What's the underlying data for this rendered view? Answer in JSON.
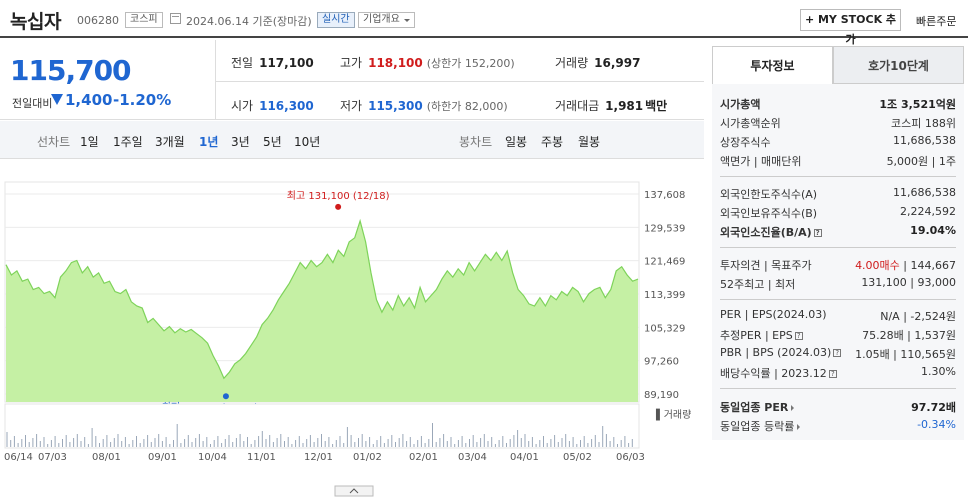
{
  "header": {
    "name": "녹십자",
    "code": "006280",
    "market": "코스피",
    "date": "2024.06.14 기준(장마감)",
    "realtime": "실시간",
    "company_info": "기업개요",
    "mystock": "+ MY STOCK 추가",
    "fast_order": "빠른주문"
  },
  "summary": {
    "price": "115,700",
    "prev_label": "전일대비",
    "change": "1,400",
    "change_pct": "-1.20%",
    "prev_close_label": "전일",
    "prev_close": "117,100",
    "high_label": "고가",
    "high": "118,100",
    "upper_limit": "(상한가 152,200)",
    "volume_label": "거래량",
    "volume": "16,997",
    "open_label": "시가",
    "open": "116,300",
    "low_label": "저가",
    "low": "115,300",
    "lower_limit": "(하한가 82,000)",
    "amount_label": "거래대금",
    "amount": "1,981",
    "amount_unit": "백만"
  },
  "tabs": {
    "line_label": "선차트",
    "periods": [
      "1일",
      "1주일",
      "3개월",
      "1년",
      "3년",
      "5년",
      "10년"
    ],
    "active": "1년",
    "candle_label": "봉차트",
    "candles": [
      "일봉",
      "주봉",
      "월봉"
    ]
  },
  "chart_data": {
    "type": "area",
    "y_ticks": [
      "137,608",
      "129,539",
      "121,469",
      "113,399",
      "105,329",
      "97,260",
      "89,190"
    ],
    "ylim": [
      89190,
      137608
    ],
    "x_ticks": [
      "06/14",
      "07/03",
      "08/01",
      "09/01",
      "10/04",
      "11/01",
      "12/01",
      "01/02",
      "02/01",
      "03/04",
      "04/01",
      "05/02",
      "06/03"
    ],
    "high_annotation": "최고 131,100 (12/18)",
    "low_annotation": "최저 93,000 (10/20)",
    "volume_label": "거래량",
    "series": [
      {
        "values": [
          120500,
          118000,
          119000,
          116500,
          117000,
          114500,
          115000,
          113500,
          114000,
          112500,
          117500,
          119000,
          121000,
          121500,
          118500,
          120000,
          117500,
          118500,
          116000,
          116500,
          114000,
          113500,
          114500,
          111500,
          110500,
          110000,
          106500,
          107500,
          106000,
          104500,
          105500,
          104000,
          105000,
          104200,
          104800,
          103800,
          102800,
          101500,
          98500,
          96000,
          93000,
          94500,
          96500,
          97500,
          99000,
          101000,
          103000,
          106000,
          107500,
          109500,
          112000,
          114000,
          116000,
          118500,
          121000,
          119500,
          121500,
          120000,
          121000,
          123000,
          121000,
          124000,
          122500,
          126000,
          127000,
          131100,
          126000,
          118500,
          112000,
          109000,
          111500,
          109500,
          113000,
          110500,
          112500,
          110000,
          115000,
          111500,
          113000,
          114500,
          117000,
          119000,
          117500,
          119500,
          118000,
          121000,
          119000,
          121000,
          123000,
          121500,
          123500,
          121500,
          123800,
          118500,
          114500,
          113000,
          111000,
          110500,
          112500,
          110500,
          113000,
          112000,
          114000,
          113000,
          115000,
          114000,
          111500,
          113500,
          114500,
          115000,
          112500,
          114500,
          119000,
          120000,
          118000,
          116500,
          117000
        ]
      }
    ]
  },
  "right": {
    "tab_invest": "투자정보",
    "tab_hoga": "호가10단계",
    "market_cap_label": "시가총액",
    "market_cap": "1조 3,521억원",
    "cap_rank_label": "시가총액순위",
    "cap_rank": "코스피 188위",
    "shares_label": "상장주식수",
    "shares": "11,686,538",
    "face_label": "액면가 | 매매단위",
    "face": "5,000원 | 1주",
    "foreign_limit_label": "외국인한도주식수(A)",
    "foreign_limit": "11,686,538",
    "foreign_hold_label": "외국인보유주식수(B)",
    "foreign_hold": "2,224,592",
    "foreign_ratio_label": "외국인소진율(B/A)",
    "foreign_ratio": "19.04%",
    "opinion_label": "투자의견 | 목표주가",
    "opinion": "4.00매수",
    "target": "144,667",
    "week52_label": "52주최고 | 최저",
    "week52": "131,100 | 93,000",
    "per_label": "PER | EPS(2024.03)",
    "per": "N/A | -2,524원",
    "est_per_label": "추정PER | EPS",
    "est_per": "75.28배 | 1,537원",
    "pbr_label": "PBR | BPS (2024.03)",
    "pbr": "1.05배 | 110,565원",
    "div_label": "배당수익률 | 2023.12",
    "div": "1.30%",
    "sector_per_label": "동일업종 PER",
    "sector_per": "97.72배",
    "sector_rate_label": "동일업종 등락률",
    "sector_rate": "-0.34%"
  },
  "colors": {
    "up": "#d01c1c",
    "down": "#1f66d1",
    "area": "#c5f0a4",
    "line": "#7ed35a"
  }
}
